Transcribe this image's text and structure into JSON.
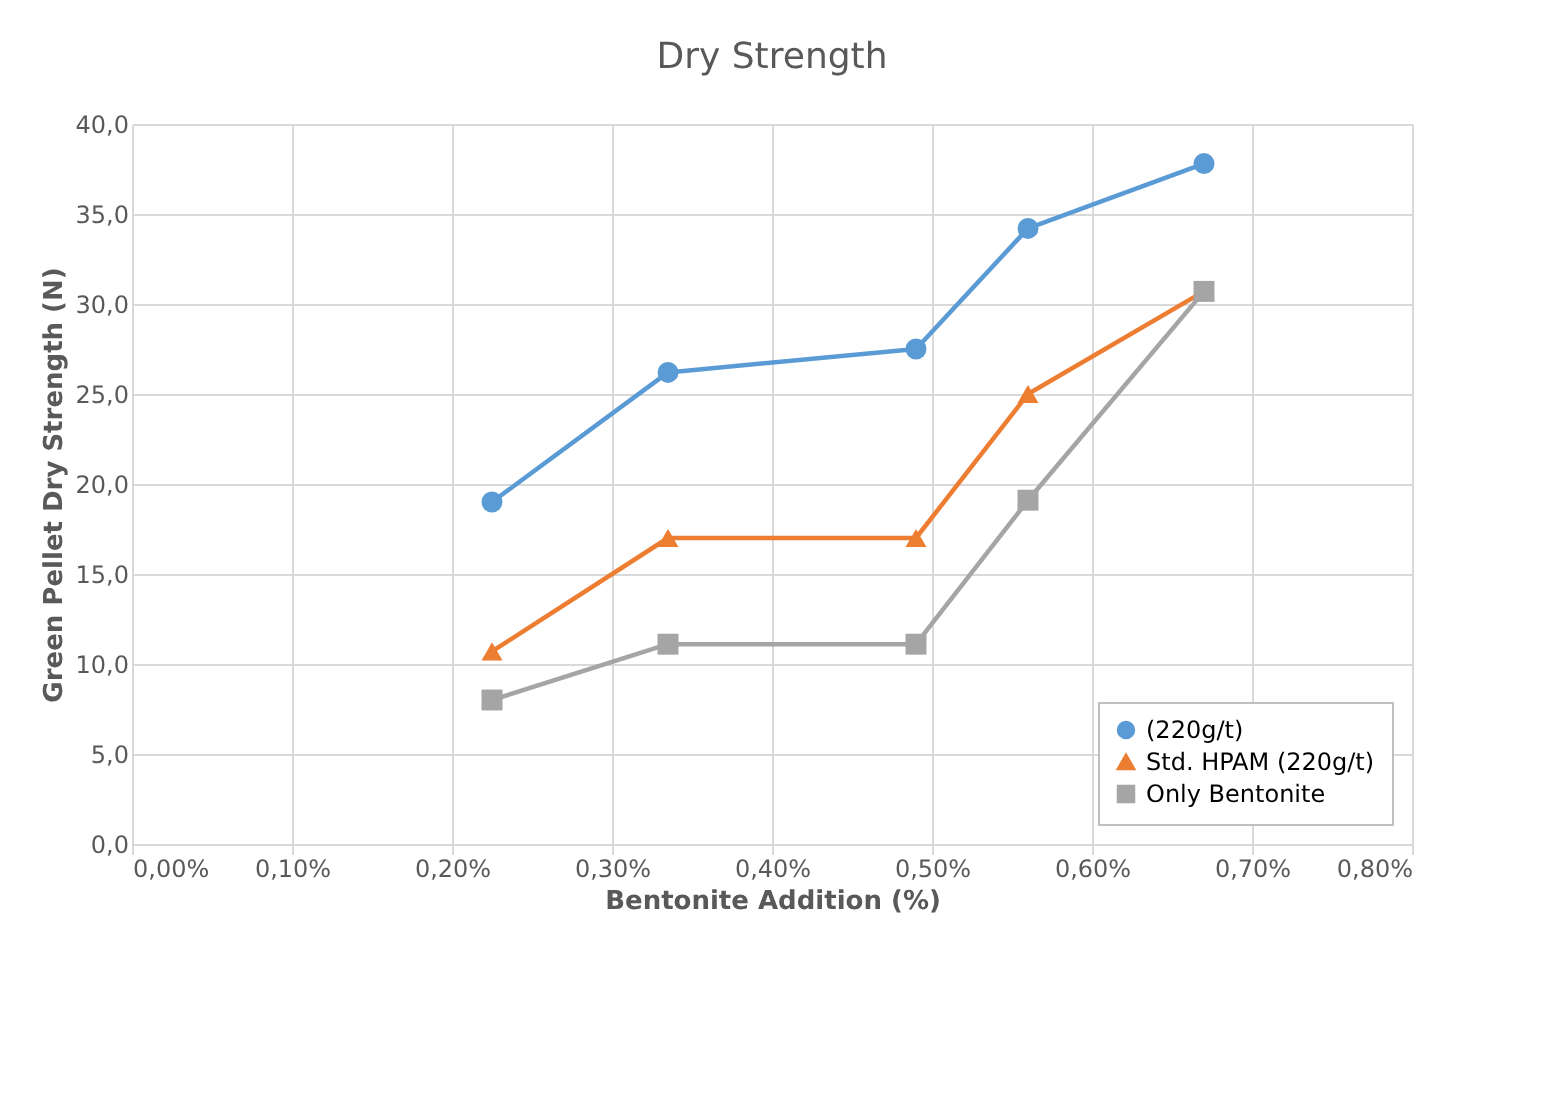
{
  "chart_data": {
    "type": "line",
    "title": "Dry Strength",
    "xlabel": "Bentonite Addition (%)",
    "ylabel": "Green Pellet Dry Strength (N)",
    "x": [
      0.225,
      0.335,
      0.49,
      0.56,
      0.67
    ],
    "series": [
      {
        "name": "(220g/t)",
        "color": "#5b9bd5",
        "marker": "circle",
        "values": [
          19.0,
          26.2,
          27.5,
          34.2,
          37.8
        ]
      },
      {
        "name": "Std. HPAM (220g/t)",
        "color": "#ed7d31",
        "marker": "triangle",
        "values": [
          10.7,
          17.0,
          17.0,
          25.0,
          30.7
        ]
      },
      {
        "name": "Only Bentonite",
        "color": "#a5a5a5",
        "marker": "square",
        "values": [
          8.0,
          11.1,
          11.1,
          19.1,
          30.7
        ]
      }
    ],
    "xlim": [
      0,
      0.8
    ],
    "xticks": [
      {
        "value": 0,
        "label": "0,00%"
      },
      {
        "value": 0.1,
        "label": "0,10%"
      },
      {
        "value": 0.2,
        "label": "0,20%"
      },
      {
        "value": 0.3,
        "label": "0,30%"
      },
      {
        "value": 0.4,
        "label": "0,40%"
      },
      {
        "value": 0.5,
        "label": "0,50%"
      },
      {
        "value": 0.6,
        "label": "0,60%"
      },
      {
        "value": 0.7,
        "label": "0,70%"
      },
      {
        "value": 0.8,
        "label": "0,80%"
      }
    ],
    "ylim": [
      0,
      40
    ],
    "yticks": [
      {
        "value": 0,
        "label": "0,0"
      },
      {
        "value": 5,
        "label": "5,0"
      },
      {
        "value": 10,
        "label": "10,0"
      },
      {
        "value": 15,
        "label": "15,0"
      },
      {
        "value": 20,
        "label": "20,0"
      },
      {
        "value": 25,
        "label": "25,0"
      },
      {
        "value": 30,
        "label": "30,0"
      },
      {
        "value": 35,
        "label": "35,0"
      },
      {
        "value": 40,
        "label": "40,0"
      }
    ],
    "grid": true,
    "legend": "bottom right",
    "line_style": "solid"
  }
}
